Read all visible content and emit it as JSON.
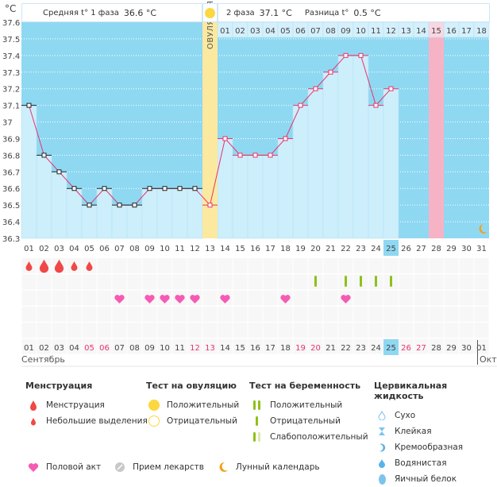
{
  "unit_label": "°C",
  "header": {
    "phase1_label": "Средняя t° 1 фаза",
    "phase1_value": "36.6 °C",
    "phase2_label": "2 фаза",
    "phase2_value": "37.1 °C",
    "diff_label": "Разница t°",
    "diff_value": "0.5 °C"
  },
  "ovulation_label": "ОВУЛЯЦИЯ",
  "months": {
    "current": "Сентябрь",
    "next": "Октя"
  },
  "colors": {
    "bg_above": "#8fd8f2",
    "bar": "#cdeefb",
    "ovulation": "#fbe9a0",
    "pink_day": "#f7b3c6",
    "phase1_marker": "#222222",
    "phase2_marker": "#e8336b",
    "line": "#e8336b",
    "weekend": "#e8336b",
    "today": "#8fd8f2"
  },
  "chart_data": {
    "type": "line",
    "ylim": [
      36.3,
      37.6
    ],
    "yticks": [
      "37.6",
      "37.5",
      "37.4",
      "37.3",
      "37.2",
      "37.1",
      "37",
      "36.9",
      "36.8",
      "36.7",
      "36.6",
      "36.5",
      "36.4",
      "36.3"
    ],
    "days": [
      "01",
      "02",
      "03",
      "04",
      "05",
      "06",
      "07",
      "08",
      "09",
      "10",
      "11",
      "12",
      "13",
      "14",
      "15",
      "16",
      "17",
      "18",
      "19",
      "20",
      "21",
      "22",
      "23",
      "24",
      "25",
      "26",
      "27",
      "28",
      "29",
      "30",
      "31"
    ],
    "temps": [
      37.1,
      36.8,
      36.7,
      36.6,
      36.5,
      36.6,
      36.5,
      36.5,
      36.6,
      36.6,
      36.6,
      36.6,
      36.5,
      36.9,
      36.8,
      36.8,
      36.8,
      36.9,
      37.1,
      37.2,
      37.3,
      37.4,
      37.4,
      37.1,
      37.2
    ],
    "ovulation_day": 13,
    "phase2_days": [
      "01",
      "02",
      "03",
      "04",
      "05",
      "06",
      "07",
      "08",
      "09",
      "10",
      "11",
      "12",
      "13",
      "14",
      "15",
      "16",
      "17",
      "18"
    ],
    "highlight_phase2_day": "15",
    "pink_day": 28,
    "today": 25,
    "moon_day": 31
  },
  "bottom_days": [
    "01",
    "02",
    "03",
    "04",
    "05",
    "06",
    "07",
    "08",
    "09",
    "10",
    "11",
    "12",
    "13",
    "14",
    "15",
    "16",
    "17",
    "18",
    "19",
    "20",
    "21",
    "22",
    "23",
    "24",
    "25",
    "26",
    "27",
    "28",
    "29",
    "30",
    "01"
  ],
  "weekend_days": [
    5,
    6,
    12,
    13,
    19,
    20,
    26,
    27
  ],
  "menstruation": [
    {
      "day": 1,
      "size": "small"
    },
    {
      "day": 2,
      "size": "big"
    },
    {
      "day": 3,
      "size": "big"
    },
    {
      "day": 4,
      "size": "small"
    },
    {
      "day": 5,
      "size": "small"
    }
  ],
  "pregnancy_tests": [
    20,
    22,
    23,
    24,
    25
  ],
  "intercourse": [
    7,
    9,
    10,
    11,
    12,
    14,
    18,
    22
  ],
  "legend": {
    "menstruation": {
      "title": "Менструация",
      "items": [
        "Менструация",
        "Небольшие выделения"
      ]
    },
    "ovulation_test": {
      "title": "Тест на овуляцию",
      "items": [
        "Положительный",
        "Отрицательный"
      ]
    },
    "pregnancy_test": {
      "title": "Тест на беременность",
      "items": [
        "Положительный",
        "Отрицательный",
        "Слабоположительный"
      ]
    },
    "cervical": {
      "title": "Цервикальная жидкость",
      "items": [
        "Сухо",
        "Клейкая",
        "Кремообразная",
        "Водянистая",
        "Яичный белок"
      ]
    },
    "other": [
      "Половой акт",
      "Прием лекарств",
      "Лунный календарь"
    ]
  }
}
